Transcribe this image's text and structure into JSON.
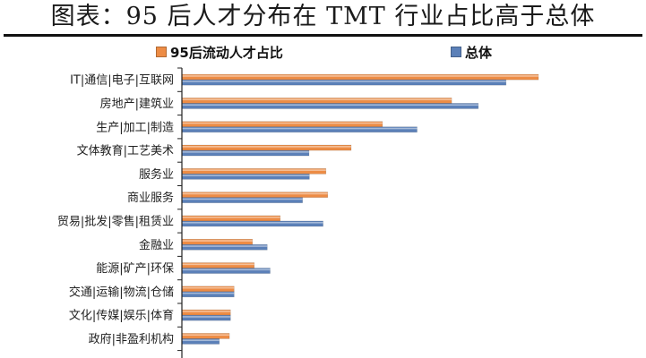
{
  "title": "图表：95 后人才分布在 TMT 行业占比高于总体",
  "colors": {
    "orange": "#ED8C45",
    "blue": "#5B80B8",
    "axis": "#222222"
  },
  "chart_data": {
    "type": "bar",
    "orientation": "horizontal",
    "title": "图表：95 后人才分布在 TMT 行业占比高于总体",
    "xlabel": "",
    "ylabel": "",
    "xlim": [
      0,
      1
    ],
    "grid": false,
    "legend_position": "top",
    "categories": [
      "IT|通信|电子|互联网",
      "房地产|建筑业",
      "生产|加工|制造",
      "文体教育|工艺美术",
      "服务业",
      "商业服务",
      "贸易|批发|零售|租赁业",
      "金融业",
      "能源|矿产|环保",
      "交通|运输|物流|仓储",
      "文化|传媒|娱乐|体育",
      "政府|非盈利机构"
    ],
    "series": [
      {
        "name": "95后流动人才占比",
        "color": "#ED8C45",
        "values": [
          0.99,
          0.749,
          0.557,
          0.47,
          0.4,
          0.405,
          0.273,
          0.196,
          0.201,
          0.145,
          0.135,
          0.132
        ]
      },
      {
        "name": "总体",
        "color": "#5B80B8",
        "values": [
          0.9,
          0.823,
          0.653,
          0.353,
          0.354,
          0.335,
          0.392,
          0.237,
          0.245,
          0.145,
          0.135,
          0.104
        ]
      }
    ]
  }
}
